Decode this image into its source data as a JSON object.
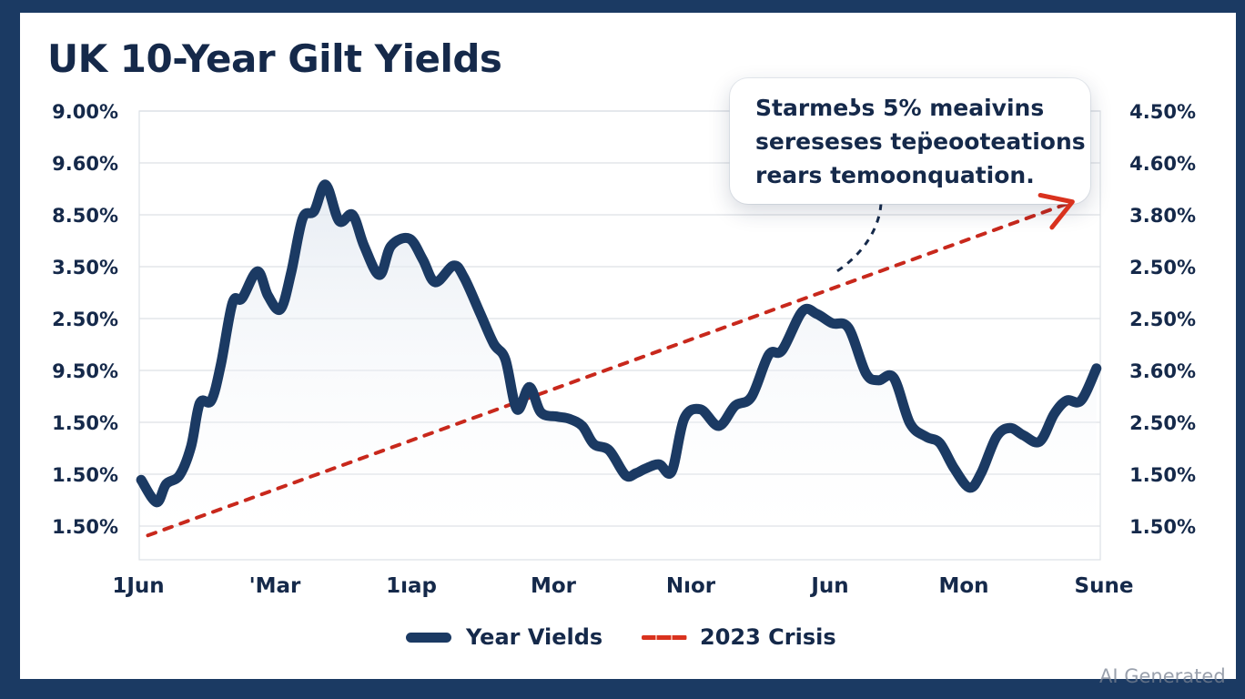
{
  "header": {
    "title": "UK 10-Year Gilt Yields"
  },
  "callout": {
    "lines": [
      "Starmeʖs 5% meaivins",
      "sereseses tep̈eooteations",
      "rears temoonquation."
    ]
  },
  "legend": {
    "items": [
      {
        "label": "Year Vields",
        "style": "solid",
        "color": "#1b3a63"
      },
      {
        "label": "2023 Crisis",
        "style": "dashed",
        "color": "#d9321e"
      }
    ]
  },
  "watermark": "AI Generated",
  "colors": {
    "frame": "#1b3a63",
    "line": "#1b3a63",
    "crisis": "#c8281c",
    "text": "#15294a",
    "grid": "#e3e6ea"
  },
  "chart_data": {
    "type": "line",
    "title": "UK 10-Year Gilt Yields",
    "xlabel": "",
    "ylabel": "",
    "grid": true,
    "legend_position": "bottom-center",
    "y_axis_note": "Tick labels are as printed (non-monotonic); values below are expressed in tick-position units, 0 = bottom tick, 8 = top tick",
    "ylim": [
      0,
      8
    ],
    "y_ticks_left": [
      "9.00%",
      "9.60%",
      "8.50%",
      "3.50%",
      "2.50%",
      "9.50%",
      "1.50%",
      "1.50%",
      "1.50%"
    ],
    "y_ticks_right": [
      "4.50%",
      "4.60%",
      "3.80%",
      "2.50%",
      "2.50%",
      "3.60%",
      "2.50%",
      "1.50%",
      "1.50%"
    ],
    "x_ticks": [
      "1Jun",
      "'Mar",
      "1ıap",
      "Mor",
      "Nıor",
      "Jun",
      "Mon",
      "Sune"
    ],
    "xlim": [
      0,
      1
    ],
    "series": [
      {
        "name": "Year Vields",
        "style": "solid",
        "x": [
          0.002,
          0.018,
          0.028,
          0.042,
          0.054,
          0.063,
          0.075,
          0.085,
          0.097,
          0.107,
          0.123,
          0.134,
          0.147,
          0.158,
          0.17,
          0.182,
          0.194,
          0.208,
          0.222,
          0.234,
          0.25,
          0.262,
          0.281,
          0.295,
          0.308,
          0.327,
          0.338,
          0.355,
          0.369,
          0.381,
          0.393,
          0.406,
          0.418,
          0.435,
          0.447,
          0.461,
          0.473,
          0.489,
          0.506,
          0.517,
          0.527,
          0.541,
          0.554,
          0.567,
          0.584,
          0.603,
          0.62,
          0.637,
          0.655,
          0.669,
          0.69,
          0.705,
          0.721,
          0.738,
          0.756,
          0.769,
          0.785,
          0.802,
          0.819,
          0.833,
          0.848,
          0.864,
          0.876,
          0.892,
          0.906,
          0.92,
          0.937,
          0.952,
          0.965,
          0.98,
          0.996
        ],
        "values": [
          0.89,
          0.46,
          0.81,
          0.98,
          1.54,
          2.37,
          2.42,
          3.12,
          4.3,
          4.39,
          4.91,
          4.44,
          4.18,
          4.88,
          5.93,
          6.07,
          6.58,
          5.88,
          6.0,
          5.4,
          4.84,
          5.4,
          5.54,
          5.14,
          4.7,
          5.02,
          4.79,
          4.09,
          3.51,
          3.21,
          2.25,
          2.68,
          2.19,
          2.11,
          2.07,
          1.93,
          1.58,
          1.46,
          0.98,
          1.02,
          1.11,
          1.19,
          1.05,
          2.07,
          2.25,
          1.93,
          2.32,
          2.49,
          3.3,
          3.39,
          4.14,
          4.09,
          3.91,
          3.82,
          2.95,
          2.81,
          2.86,
          1.98,
          1.72,
          1.6,
          1.11,
          0.74,
          1.02,
          1.72,
          1.89,
          1.75,
          1.63,
          2.16,
          2.42,
          2.42,
          3.04
        ]
      },
      {
        "name": "2023 Crisis",
        "style": "dashed",
        "x": [
          0.009,
          0.971
        ],
        "values": [
          -0.18,
          6.25
        ],
        "end_marker": "arrow"
      }
    ],
    "annotations": [
      {
        "text": "Starmeʖs 5% meaivins sereseses tep̈eooteations rears temoonquation.",
        "points_to_x": 0.725,
        "points_to_value": 4.9
      }
    ]
  }
}
